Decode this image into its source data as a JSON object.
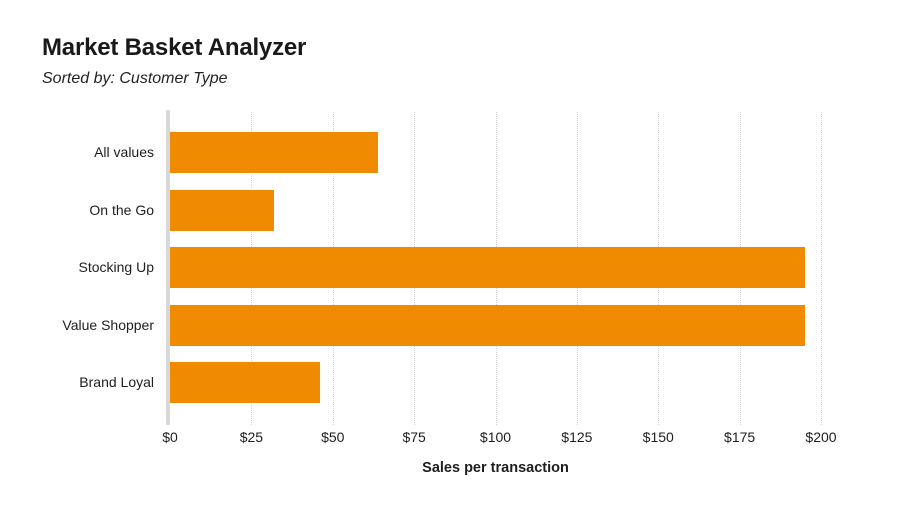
{
  "header": {
    "title": "Market Basket Analyzer",
    "subtitle": "Sorted by: Customer Type"
  },
  "chart_data": {
    "type": "bar",
    "orientation": "horizontal",
    "title": "Market Basket Analyzer",
    "subtitle": "Sorted by: Customer Type",
    "categories": [
      "All values",
      "On the Go",
      "Stocking Up",
      "Value Shopper",
      "Brand Loyal"
    ],
    "values": [
      64,
      32,
      195,
      195,
      46
    ],
    "xlabel": "Sales per transaction",
    "ylabel": "",
    "xlim": [
      0,
      200
    ],
    "xtick_values": [
      0,
      25,
      50,
      75,
      100,
      125,
      150,
      175,
      200
    ],
    "xtick_labels": [
      "$0",
      "$25",
      "$50",
      "$75",
      "$100",
      "$125",
      "$150",
      "$175",
      "$200"
    ],
    "grid": "vertical-dotted",
    "legend": "none",
    "bar_color": "#F08A00",
    "axis_line_color": "#D8D8D8",
    "gridline_color": "#D4D4D4"
  }
}
